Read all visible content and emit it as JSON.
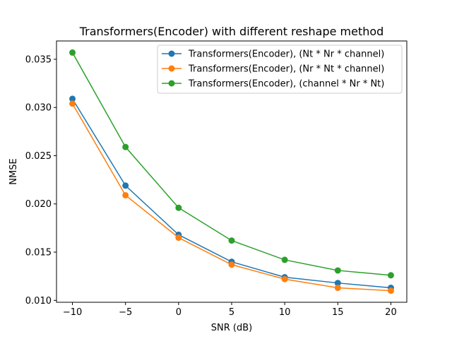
{
  "chart_data": {
    "type": "line",
    "title": "Transformers(Encoder) with different reshape method",
    "xlabel": "SNR (dB)",
    "ylabel": "NMSE",
    "x": [
      -10,
      -5,
      0,
      5,
      10,
      15,
      20
    ],
    "xlim": [
      -11.5,
      21.5
    ],
    "ylim": [
      0.0098,
      0.0369
    ],
    "xticks": [
      -10,
      -5,
      0,
      5,
      10,
      15,
      20
    ],
    "xtick_labels": [
      "−10",
      "−5",
      "0",
      "5",
      "10",
      "15",
      "20"
    ],
    "yticks": [
      0.01,
      0.015,
      0.02,
      0.025,
      0.03,
      0.035
    ],
    "ytick_labels": [
      "0.010",
      "0.015",
      "0.020",
      "0.025",
      "0.030",
      "0.035"
    ],
    "grid": false,
    "legend_position": "top-right",
    "series": [
      {
        "name": "Transformers(Encoder), (Nt * Nr * channel)",
        "color": "#1f77b4",
        "values": [
          0.0309,
          0.0219,
          0.0168,
          0.014,
          0.0124,
          0.0118,
          0.0113
        ]
      },
      {
        "name": "Transformers(Encoder), (Nr * Nt * channel)",
        "color": "#ff7f0e",
        "values": [
          0.0304,
          0.0209,
          0.0165,
          0.0137,
          0.0122,
          0.0113,
          0.011
        ]
      },
      {
        "name": "Transformers(Encoder), (channel * Nr * Nt)",
        "color": "#2ca02c",
        "values": [
          0.0357,
          0.0259,
          0.0196,
          0.0162,
          0.0142,
          0.0131,
          0.0126
        ]
      }
    ]
  }
}
